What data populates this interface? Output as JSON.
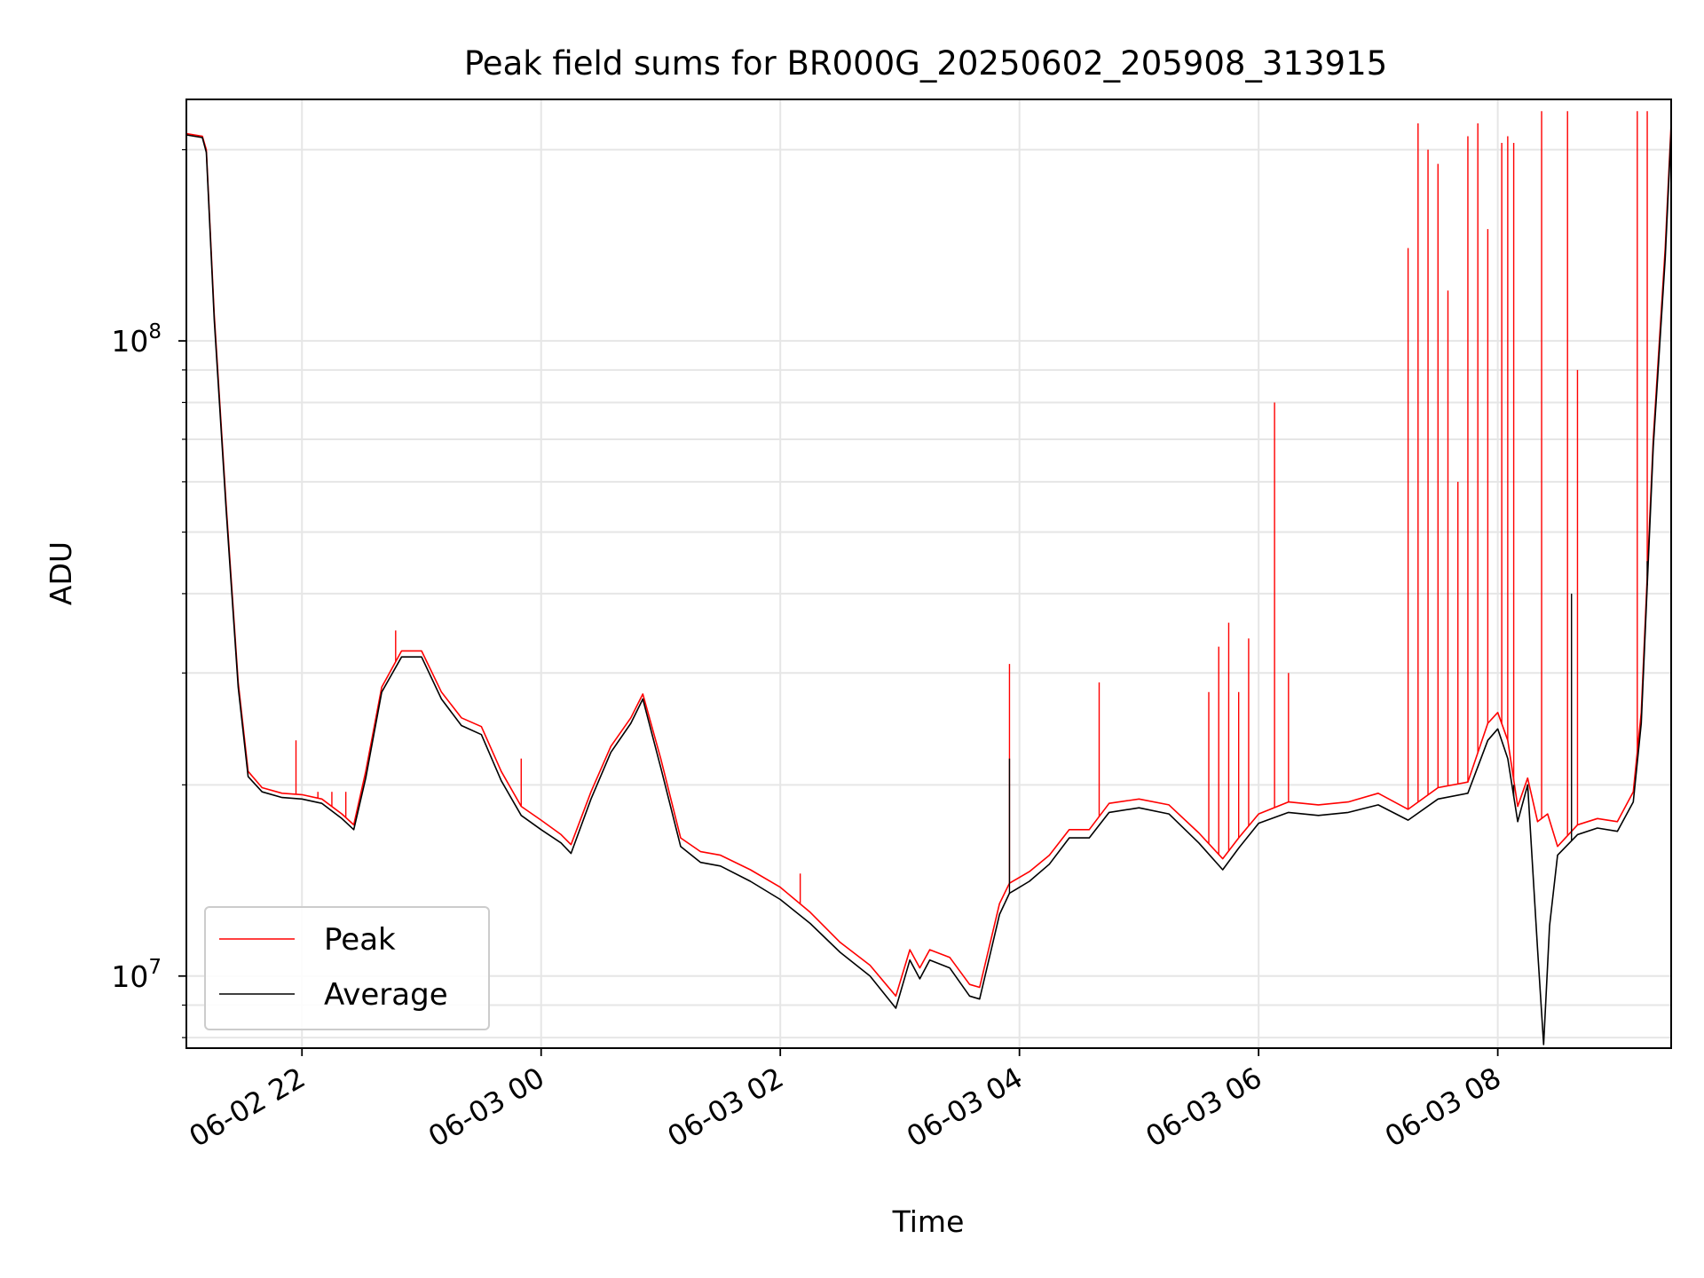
{
  "chart_data": {
    "type": "line",
    "title": "Peak field sums for BR000G_20250602_205908_313915",
    "xlabel": "Time",
    "ylabel": "ADU",
    "y_scale": "log",
    "ylim": [
      7700000,
      240000000
    ],
    "xlim": [
      "2025-06-02 21:02",
      "2025-06-03 09:27"
    ],
    "x_ticks": [
      {
        "at": "2025-06-02 22:00",
        "label": "06-02 22"
      },
      {
        "at": "2025-06-03 00:00",
        "label": "06-03 00"
      },
      {
        "at": "2025-06-03 02:00",
        "label": "06-03 02"
      },
      {
        "at": "2025-06-03 04:00",
        "label": "06-03 04"
      },
      {
        "at": "2025-06-03 06:00",
        "label": "06-03 06"
      },
      {
        "at": "2025-06-03 08:00",
        "label": "06-03 08"
      }
    ],
    "y_ticks": [
      {
        "value": 10000000,
        "base": "10",
        "exp": "7"
      },
      {
        "value": 100000000,
        "base": "10",
        "exp": "8"
      }
    ],
    "grid": true,
    "legend_position": "lower-left",
    "series": [
      {
        "name": "Peak",
        "color": "#ff0000",
        "points": [
          [
            "2025-06-02 21:02",
            212000000
          ],
          [
            "2025-06-02 21:10",
            210000000
          ],
          [
            "2025-06-02 21:12",
            200000000
          ],
          [
            "2025-06-02 21:16",
            110000000
          ],
          [
            "2025-06-02 21:22",
            55000000
          ],
          [
            "2025-06-02 21:28",
            29000000
          ],
          [
            "2025-06-02 21:33",
            21000000
          ],
          [
            "2025-06-02 21:40",
            19800000
          ],
          [
            "2025-06-02 21:50",
            19400000
          ],
          [
            "2025-06-02 22:00",
            19300000
          ],
          [
            "2025-06-02 22:10",
            19000000
          ],
          [
            "2025-06-02 22:20",
            18000000
          ],
          [
            "2025-06-02 22:26",
            17300000
          ],
          [
            "2025-06-02 22:32",
            21000000
          ],
          [
            "2025-06-02 22:40",
            28500000
          ],
          [
            "2025-06-02 22:50",
            32500000
          ],
          [
            "2025-06-02 23:00",
            32500000
          ],
          [
            "2025-06-02 23:10",
            28000000
          ],
          [
            "2025-06-02 23:20",
            25500000
          ],
          [
            "2025-06-02 23:30",
            24700000
          ],
          [
            "2025-06-02 23:40",
            21000000
          ],
          [
            "2025-06-02 23:50",
            18500000
          ],
          [
            "2025-06-03 00:00",
            17600000
          ],
          [
            "2025-06-03 00:10",
            16700000
          ],
          [
            "2025-06-03 00:15",
            16100000
          ],
          [
            "2025-06-03 00:25",
            19500000
          ],
          [
            "2025-06-03 00:35",
            23000000
          ],
          [
            "2025-06-03 00:45",
            25500000
          ],
          [
            "2025-06-03 00:51",
            27800000
          ],
          [
            "2025-06-03 01:00",
            22000000
          ],
          [
            "2025-06-03 01:10",
            16500000
          ],
          [
            "2025-06-03 01:20",
            15700000
          ],
          [
            "2025-06-03 01:30",
            15500000
          ],
          [
            "2025-06-03 01:45",
            14700000
          ],
          [
            "2025-06-03 02:00",
            13800000
          ],
          [
            "2025-06-03 02:15",
            12600000
          ],
          [
            "2025-06-03 02:30",
            11300000
          ],
          [
            "2025-06-03 02:45",
            10400000
          ],
          [
            "2025-06-03 02:58",
            9300000
          ],
          [
            "2025-06-03 03:05",
            11000000
          ],
          [
            "2025-06-03 03:10",
            10300000
          ],
          [
            "2025-06-03 03:15",
            11000000
          ],
          [
            "2025-06-03 03:25",
            10700000
          ],
          [
            "2025-06-03 03:35",
            9700000
          ],
          [
            "2025-06-03 03:40",
            9600000
          ],
          [
            "2025-06-03 03:50",
            13000000
          ],
          [
            "2025-06-03 03:55",
            14000000
          ],
          [
            "2025-06-03 04:05",
            14600000
          ],
          [
            "2025-06-03 04:15",
            15500000
          ],
          [
            "2025-06-03 04:25",
            17000000
          ],
          [
            "2025-06-03 04:35",
            17000000
          ],
          [
            "2025-06-03 04:45",
            18700000
          ],
          [
            "2025-06-03 05:00",
            19000000
          ],
          [
            "2025-06-03 05:15",
            18600000
          ],
          [
            "2025-06-03 05:30",
            16800000
          ],
          [
            "2025-06-03 05:42",
            15300000
          ],
          [
            "2025-06-03 05:50",
            16500000
          ],
          [
            "2025-06-03 06:00",
            18000000
          ],
          [
            "2025-06-03 06:15",
            18800000
          ],
          [
            "2025-06-03 06:30",
            18600000
          ],
          [
            "2025-06-03 06:45",
            18800000
          ],
          [
            "2025-06-03 07:00",
            19400000
          ],
          [
            "2025-06-03 07:15",
            18300000
          ],
          [
            "2025-06-03 07:30",
            19800000
          ],
          [
            "2025-06-03 07:45",
            20200000
          ],
          [
            "2025-06-03 07:55",
            25000000
          ],
          [
            "2025-06-03 08:00",
            26000000
          ],
          [
            "2025-06-03 08:05",
            23500000
          ],
          [
            "2025-06-03 08:10",
            18500000
          ],
          [
            "2025-06-03 08:15",
            20500000
          ],
          [
            "2025-06-03 08:20",
            17500000
          ],
          [
            "2025-06-03 08:25",
            18000000
          ],
          [
            "2025-06-03 08:30",
            16000000
          ],
          [
            "2025-06-03 08:40",
            17300000
          ],
          [
            "2025-06-03 08:50",
            17700000
          ],
          [
            "2025-06-03 09:00",
            17500000
          ],
          [
            "2025-06-03 09:08",
            19500000
          ],
          [
            "2025-06-03 09:12",
            26000000
          ],
          [
            "2025-06-03 09:18",
            70000000
          ],
          [
            "2025-06-03 09:24",
            140000000
          ],
          [
            "2025-06-03 09:27",
            220000000
          ]
        ],
        "spikes": [
          [
            "2025-06-02 21:57",
            23500000
          ],
          [
            "2025-06-02 22:08",
            19500000
          ],
          [
            "2025-06-02 22:15",
            19500000
          ],
          [
            "2025-06-02 22:22",
            19500000
          ],
          [
            "2025-06-02 22:47",
            35000000
          ],
          [
            "2025-06-02 23:50",
            22000000
          ],
          [
            "2025-06-03 02:10",
            14500000
          ],
          [
            "2025-06-03 03:55",
            31000000
          ],
          [
            "2025-06-03 04:40",
            29000000
          ],
          [
            "2025-06-03 05:35",
            28000000
          ],
          [
            "2025-06-03 05:40",
            33000000
          ],
          [
            "2025-06-03 05:45",
            36000000
          ],
          [
            "2025-06-03 05:50",
            28000000
          ],
          [
            "2025-06-03 05:55",
            34000000
          ],
          [
            "2025-06-03 06:08",
            80000000
          ],
          [
            "2025-06-03 06:15",
            30000000
          ],
          [
            "2025-06-03 07:15",
            140000000
          ],
          [
            "2025-06-03 07:20",
            220000000
          ],
          [
            "2025-06-03 07:25",
            200000000
          ],
          [
            "2025-06-03 07:30",
            190000000
          ],
          [
            "2025-06-03 07:35",
            120000000
          ],
          [
            "2025-06-03 07:40",
            60000000
          ],
          [
            "2025-06-03 07:45",
            210000000
          ],
          [
            "2025-06-03 07:50",
            220000000
          ],
          [
            "2025-06-03 07:55",
            150000000
          ],
          [
            "2025-06-03 08:02",
            205000000
          ],
          [
            "2025-06-03 08:05",
            210000000
          ],
          [
            "2025-06-03 08:08",
            205000000
          ],
          [
            "2025-06-03 08:22",
            230000000
          ],
          [
            "2025-06-03 08:35",
            230000000
          ],
          [
            "2025-06-03 08:40",
            90000000
          ],
          [
            "2025-06-03 09:10",
            230000000
          ],
          [
            "2025-06-03 09:15",
            230000000
          ]
        ]
      },
      {
        "name": "Average",
        "color": "#000000",
        "points": [
          [
            "2025-06-02 21:02",
            211000000
          ],
          [
            "2025-06-02 21:10",
            209000000
          ],
          [
            "2025-06-02 21:12",
            198000000
          ],
          [
            "2025-06-02 21:16",
            108000000
          ],
          [
            "2025-06-02 21:22",
            54000000
          ],
          [
            "2025-06-02 21:28",
            28500000
          ],
          [
            "2025-06-02 21:33",
            20600000
          ],
          [
            "2025-06-02 21:40",
            19500000
          ],
          [
            "2025-06-02 21:50",
            19100000
          ],
          [
            "2025-06-02 22:00",
            19000000
          ],
          [
            "2025-06-02 22:10",
            18700000
          ],
          [
            "2025-06-02 22:20",
            17700000
          ],
          [
            "2025-06-02 22:26",
            17000000
          ],
          [
            "2025-06-02 22:32",
            20500000
          ],
          [
            "2025-06-02 22:40",
            28000000
          ],
          [
            "2025-06-02 22:50",
            31800000
          ],
          [
            "2025-06-02 23:00",
            31800000
          ],
          [
            "2025-06-02 23:10",
            27300000
          ],
          [
            "2025-06-02 23:20",
            24800000
          ],
          [
            "2025-06-02 23:30",
            24000000
          ],
          [
            "2025-06-02 23:40",
            20300000
          ],
          [
            "2025-06-02 23:50",
            17900000
          ],
          [
            "2025-06-03 00:00",
            17000000
          ],
          [
            "2025-06-03 00:10",
            16200000
          ],
          [
            "2025-06-03 00:15",
            15600000
          ],
          [
            "2025-06-03 00:25",
            19000000
          ],
          [
            "2025-06-03 00:35",
            22500000
          ],
          [
            "2025-06-03 00:45",
            25000000
          ],
          [
            "2025-06-03 00:51",
            27300000
          ],
          [
            "2025-06-03 01:00",
            21300000
          ],
          [
            "2025-06-03 01:10",
            16000000
          ],
          [
            "2025-06-03 01:20",
            15100000
          ],
          [
            "2025-06-03 01:30",
            14900000
          ],
          [
            "2025-06-03 01:45",
            14100000
          ],
          [
            "2025-06-03 02:00",
            13200000
          ],
          [
            "2025-06-03 02:15",
            12100000
          ],
          [
            "2025-06-03 02:30",
            10900000
          ],
          [
            "2025-06-03 02:45",
            10000000
          ],
          [
            "2025-06-03 02:58",
            8900000
          ],
          [
            "2025-06-03 03:05",
            10600000
          ],
          [
            "2025-06-03 03:10",
            9900000
          ],
          [
            "2025-06-03 03:15",
            10600000
          ],
          [
            "2025-06-03 03:25",
            10300000
          ],
          [
            "2025-06-03 03:35",
            9300000
          ],
          [
            "2025-06-03 03:40",
            9200000
          ],
          [
            "2025-06-03 03:50",
            12500000
          ],
          [
            "2025-06-03 03:55",
            13500000
          ],
          [
            "2025-06-03 04:05",
            14100000
          ],
          [
            "2025-06-03 04:15",
            15000000
          ],
          [
            "2025-06-03 04:25",
            16500000
          ],
          [
            "2025-06-03 04:35",
            16500000
          ],
          [
            "2025-06-03 04:45",
            18100000
          ],
          [
            "2025-06-03 05:00",
            18400000
          ],
          [
            "2025-06-03 05:15",
            18000000
          ],
          [
            "2025-06-03 05:30",
            16200000
          ],
          [
            "2025-06-03 05:42",
            14700000
          ],
          [
            "2025-06-03 05:50",
            15900000
          ],
          [
            "2025-06-03 06:00",
            17400000
          ],
          [
            "2025-06-03 06:15",
            18100000
          ],
          [
            "2025-06-03 06:30",
            17900000
          ],
          [
            "2025-06-03 06:45",
            18100000
          ],
          [
            "2025-06-03 07:00",
            18600000
          ],
          [
            "2025-06-03 07:15",
            17600000
          ],
          [
            "2025-06-03 07:30",
            19000000
          ],
          [
            "2025-06-03 07:45",
            19400000
          ],
          [
            "2025-06-03 07:55",
            23500000
          ],
          [
            "2025-06-03 08:00",
            24500000
          ],
          [
            "2025-06-03 08:05",
            22000000
          ],
          [
            "2025-06-03 08:10",
            17500000
          ],
          [
            "2025-06-03 08:15",
            20000000
          ],
          [
            "2025-06-03 08:20",
            11000000
          ],
          [
            "2025-06-03 08:23",
            7800000
          ],
          [
            "2025-06-03 08:26",
            12000000
          ],
          [
            "2025-06-03 08:30",
            15500000
          ],
          [
            "2025-06-03 08:40",
            16700000
          ],
          [
            "2025-06-03 08:50",
            17100000
          ],
          [
            "2025-06-03 09:00",
            16900000
          ],
          [
            "2025-06-03 09:08",
            18800000
          ],
          [
            "2025-06-03 09:12",
            25000000
          ],
          [
            "2025-06-03 09:18",
            68000000
          ],
          [
            "2025-06-03 09:24",
            135000000
          ],
          [
            "2025-06-03 09:27",
            215000000
          ]
        ],
        "spikes": [
          [
            "2025-06-03 03:55",
            22000000
          ],
          [
            "2025-06-03 08:08",
            20000000
          ],
          [
            "2025-06-03 08:37",
            40000000
          ],
          [
            "2025-06-03 09:15",
            45000000
          ]
        ]
      }
    ]
  }
}
